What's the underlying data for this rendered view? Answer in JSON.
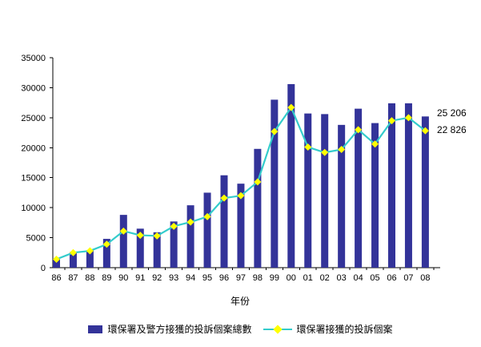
{
  "chart_data": {
    "type": "bar+line",
    "title": "",
    "xlabel": "年份",
    "ylim": [
      0,
      35000
    ],
    "ytick_interval": 5000,
    "ytick_labels": [
      "0",
      "5000",
      "10000",
      "15000",
      "20000",
      "25000",
      "30000",
      "35000"
    ],
    "grid": false,
    "legend_position": "bottom",
    "categories": [
      "86",
      "87",
      "88",
      "89",
      "90",
      "91",
      "92",
      "93",
      "94",
      "95",
      "96",
      "97",
      "98",
      "99",
      "00",
      "01",
      "02",
      "03",
      "04",
      "05",
      "06",
      "07",
      "08"
    ],
    "series": [
      {
        "name": "環保署及警方接獲的投訴個案總數",
        "type": "bar",
        "color": "#333399",
        "values": [
          1500,
          2600,
          2900,
          4800,
          8800,
          6500,
          5900,
          7700,
          10400,
          12500,
          15400,
          14000,
          19800,
          28000,
          30600,
          25700,
          25600,
          23800,
          26500,
          24100,
          27400,
          27400,
          25206
        ]
      },
      {
        "name": "環保署接獲的投訴個案",
        "type": "line",
        "color": "#33CCCC",
        "marker": "diamond",
        "marker_color": "#FFFF00",
        "values": [
          1400,
          2500,
          2800,
          3900,
          6100,
          5400,
          5300,
          6900,
          7600,
          8500,
          11600,
          12000,
          14300,
          22700,
          26700,
          20100,
          19200,
          19700,
          23000,
          20600,
          24500,
          25000,
          22826
        ]
      }
    ],
    "annotations": [
      {
        "text": "25 206"
      },
      {
        "text": "22 826"
      }
    ]
  }
}
